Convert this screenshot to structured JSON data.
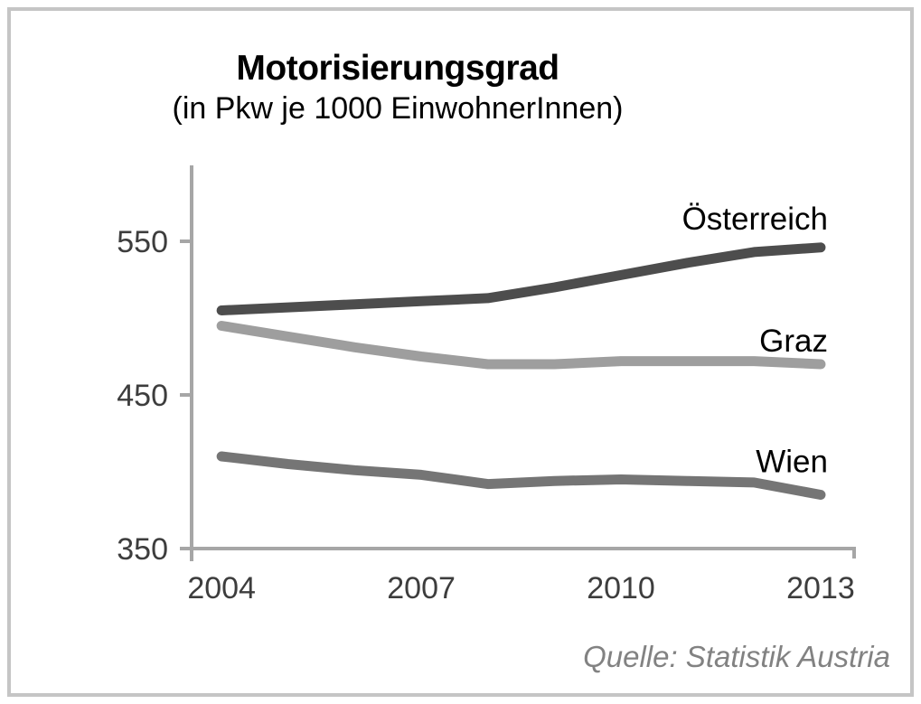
{
  "chart": {
    "title": "Motorisierungsgrad",
    "subtitle": "(in Pkw je 1000 EinwohnerInnen)",
    "source": "Quelle: Statistik Austria"
  },
  "chart_data": {
    "type": "line",
    "title": "Motorisierungsgrad",
    "subtitle": "(in Pkw je 1000 EinwohnerInnen)",
    "source": "Quelle: Statistik Austria",
    "x": [
      2004,
      2005,
      2006,
      2007,
      2008,
      2009,
      2010,
      2011,
      2012,
      2013
    ],
    "x_tick_labels": [
      "2004",
      "2007",
      "2010",
      "2013"
    ],
    "y_ticks": [
      350,
      450,
      550
    ],
    "xlim": [
      2003.55,
      2013.53
    ],
    "ylim": [
      350,
      600
    ],
    "grid": false,
    "legend_position": "direct-labels-at-line-end",
    "axis_color": "#a6a6a6",
    "tick_label_color": "#3d3d3d",
    "series_label_color": "#000000",
    "series": [
      {
        "name": "Österreich",
        "color": "#4d4d4d",
        "values": [
          505,
          507,
          509,
          511,
          513,
          520,
          528,
          536,
          543,
          546
        ],
        "label_dy": -20
      },
      {
        "name": "Graz",
        "color": "#9e9e9e",
        "values": [
          495,
          488,
          481,
          475,
          470,
          470,
          472,
          472,
          472,
          470
        ],
        "label_dy": -14
      },
      {
        "name": "Wien",
        "color": "#757575",
        "values": [
          410,
          405,
          401,
          398,
          392,
          394,
          395,
          394,
          393,
          385
        ],
        "label_dy": -25
      }
    ]
  }
}
